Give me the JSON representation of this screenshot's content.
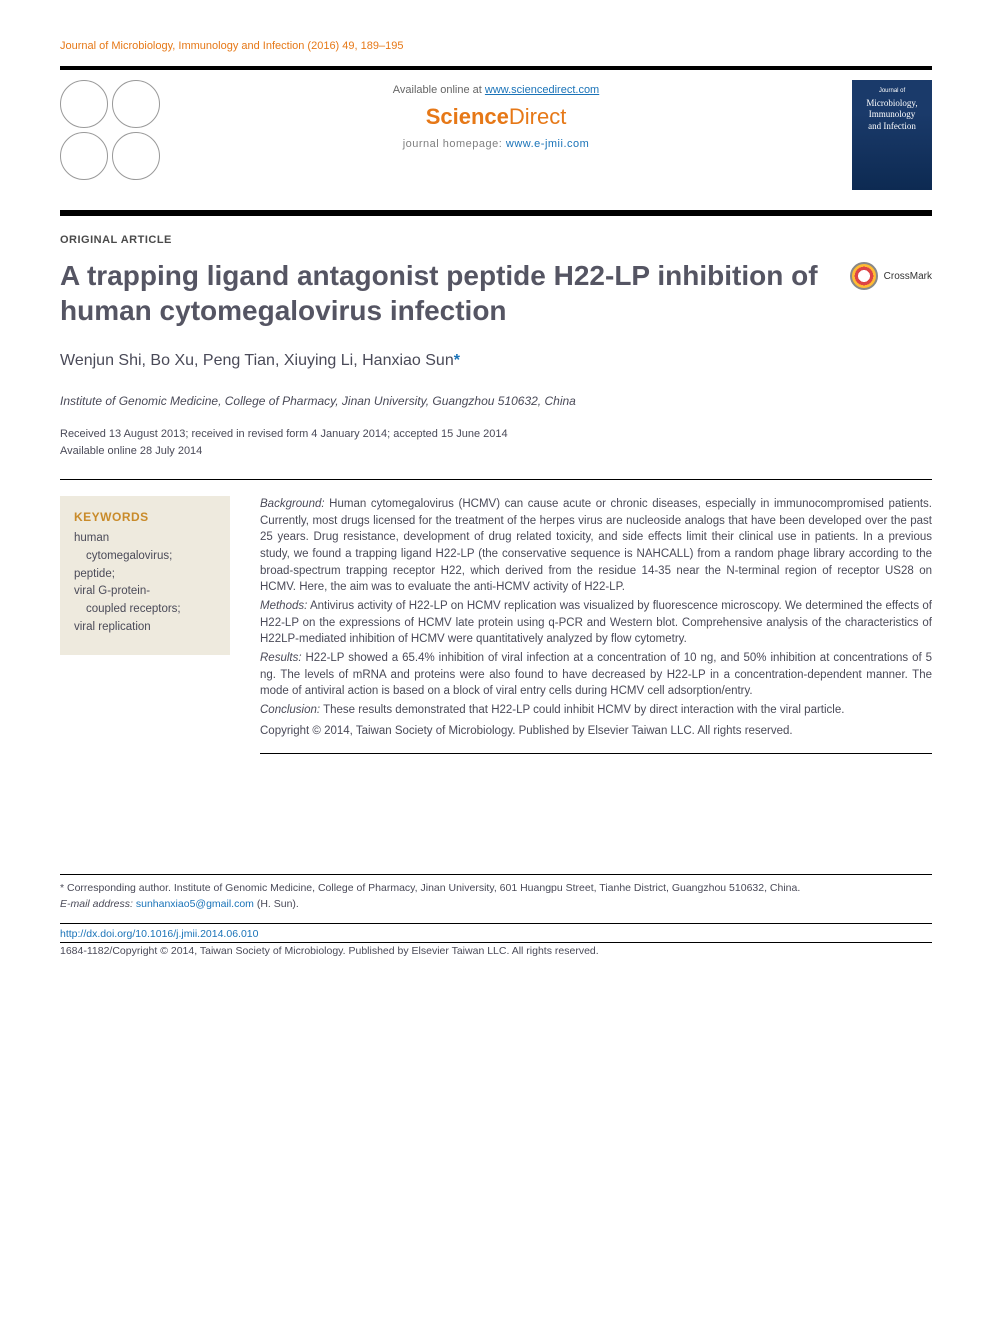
{
  "running_head": "Journal of Microbiology, Immunology and Infection (2016) 49, 189–195",
  "masthead": {
    "available_prefix": "Available online at ",
    "available_link": "www.sciencedirect.com",
    "sd_logo_1": "Science",
    "sd_logo_2": "Direct",
    "homepage_label": "journal homepage: ",
    "homepage_link": "www.e-jmii.com"
  },
  "cover": {
    "line1": "Journal of",
    "line2": "Microbiology,",
    "line3": "Immunology",
    "line4": "and Infection"
  },
  "article_type": "ORIGINAL ARTICLE",
  "title": "A trapping ligand antagonist peptide H22-LP inhibition of human cytomegalovirus infection",
  "crossmark": "CrossMark",
  "authors_line": "Wenjun Shi, Bo Xu, Peng Tian, Xiuying Li, Hanxiao Sun",
  "corr_marker": "*",
  "affiliation": "Institute of Genomic Medicine, College of Pharmacy, Jinan University, Guangzhou 510632, China",
  "history_line1": "Received 13 August 2013; received in revised form 4 January 2014; accepted 15 June 2014",
  "history_line2": "Available online 28 July 2014",
  "keywords": {
    "head": "KEYWORDS",
    "k1a": "human",
    "k1b": "cytomegalovirus;",
    "k2": "peptide;",
    "k3a": "viral G-protein-",
    "k3b": "coupled receptors;",
    "k4": "viral replication"
  },
  "abstract": {
    "bg_label": "Background:",
    "bg_text": " Human cytomegalovirus (HCMV) can cause acute or chronic diseases, especially in immunocompromised patients. Currently, most drugs licensed for the treatment of the herpes virus are nucleoside analogs that have been developed over the past 25 years. Drug resistance, development of drug related toxicity, and side effects limit their clinical use in patients. In a previous study, we found a trapping ligand H22-LP (the conservative sequence is NAHCALL) from a random phage library according to the broad-spectrum trapping receptor H22, which derived from the residue 14-35 near the N-terminal region of receptor US28 on HCMV. Here, the aim was to evaluate the anti-HCMV activity of H22-LP.",
    "me_label": "Methods:",
    "me_text": " Antivirus activity of H22-LP on HCMV replication was visualized by fluorescence microscopy. We determined the effects of H22-LP on the expressions of HCMV late protein using q-PCR and Western blot. Comprehensive analysis of the characteristics of H22LP-mediated inhibition of HCMV were quantitatively analyzed by flow cytometry.",
    "re_label": "Results:",
    "re_text": " H22-LP showed a 65.4% inhibition of viral infection at a concentration of 10 ng, and 50% inhibition at concentrations of 5 ng. The levels of mRNA and proteins were also found to have decreased by H22-LP in a concentration-dependent manner. The mode of antiviral action is based on a block of viral entry cells during HCMV cell adsorption/entry.",
    "co_label": "Conclusion:",
    "co_text": " These results demonstrated that H22-LP could inhibit HCMV by direct interaction with the viral particle.",
    "copyright": "Copyright © 2014, Taiwan Society of Microbiology. Published by Elsevier Taiwan LLC. All rights reserved."
  },
  "footnotes": {
    "corr": "* Corresponding author. Institute of Genomic Medicine, College of Pharmacy, Jinan University, 601 Huangpu Street, Tianhe District, Guangzhou 510632, China.",
    "email_label": "E-mail address: ",
    "email": "sunhanxiao5@gmail.com",
    "email_tail": " (H. Sun)."
  },
  "doi": "http://dx.doi.org/10.1016/j.jmii.2014.06.010",
  "issn_line": "1684-1182/Copyright © 2014, Taiwan Society of Microbiology. Published by Elsevier Taiwan LLC. All rights reserved.",
  "colors": {
    "accent_orange": "#e67817",
    "link_blue": "#1a73b8",
    "body_text": "#4a4a58",
    "kw_box_bg": "#eeeade",
    "kw_head": "#c98b2a",
    "title_grey": "#555563"
  }
}
